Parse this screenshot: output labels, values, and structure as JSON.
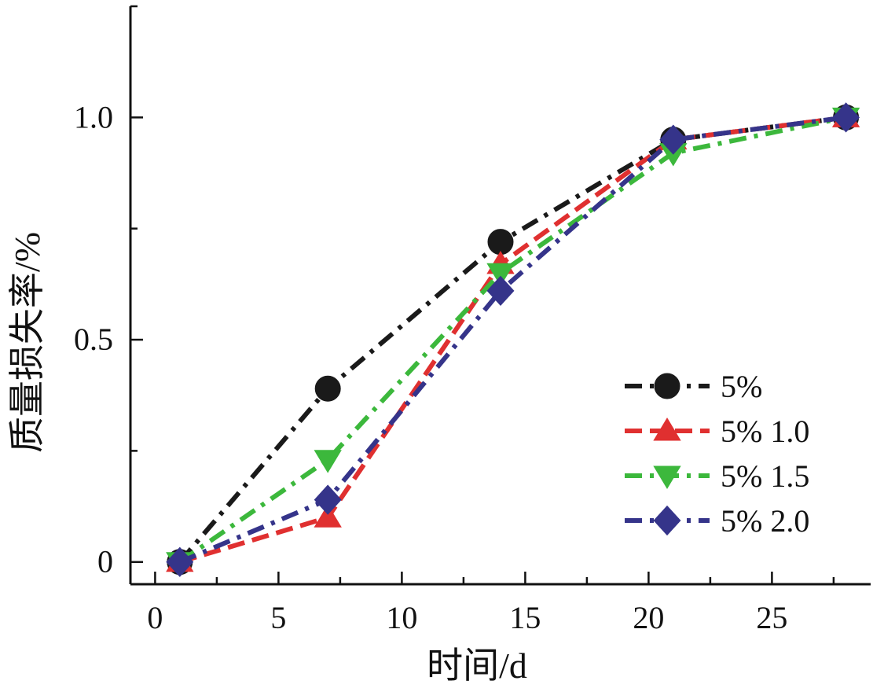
{
  "chart_data": {
    "type": "line",
    "title": "",
    "xlabel": "时间/d",
    "ylabel": "质量损失率/%",
    "xlim": [
      -1,
      29
    ],
    "ylim": [
      -0.05,
      1.25
    ],
    "x_ticks": [
      0,
      5,
      10,
      15,
      20,
      25
    ],
    "x_tick_labels": [
      "0",
      "5",
      "10",
      "15",
      "20",
      "25"
    ],
    "y_ticks": [
      0,
      0.5,
      1.0
    ],
    "y_tick_labels": [
      "0",
      "0.5",
      "1.0"
    ],
    "grid": false,
    "legend_position": "lower-right",
    "x": [
      1,
      7,
      14,
      21,
      28
    ],
    "series": [
      {
        "name": "5%",
        "values": [
          0.0,
          0.39,
          0.72,
          0.95,
          1.0
        ],
        "color": "#1a1a1a",
        "marker": "circle",
        "dash": "dashdot"
      },
      {
        "name": "5% 1.0",
        "values": [
          0.0,
          0.1,
          0.67,
          0.95,
          1.0
        ],
        "color": "#e03030",
        "marker": "triangle-up",
        "dash": "dash"
      },
      {
        "name": "5% 1.5",
        "values": [
          0.0,
          0.23,
          0.65,
          0.92,
          1.0
        ],
        "color": "#3cb83c",
        "marker": "triangle-down",
        "dash": "dashdot"
      },
      {
        "name": "5% 2.0",
        "values": [
          0.0,
          0.14,
          0.61,
          0.95,
          1.0
        ],
        "color": "#35348a",
        "marker": "diamond",
        "dash": "dashdot"
      }
    ]
  }
}
